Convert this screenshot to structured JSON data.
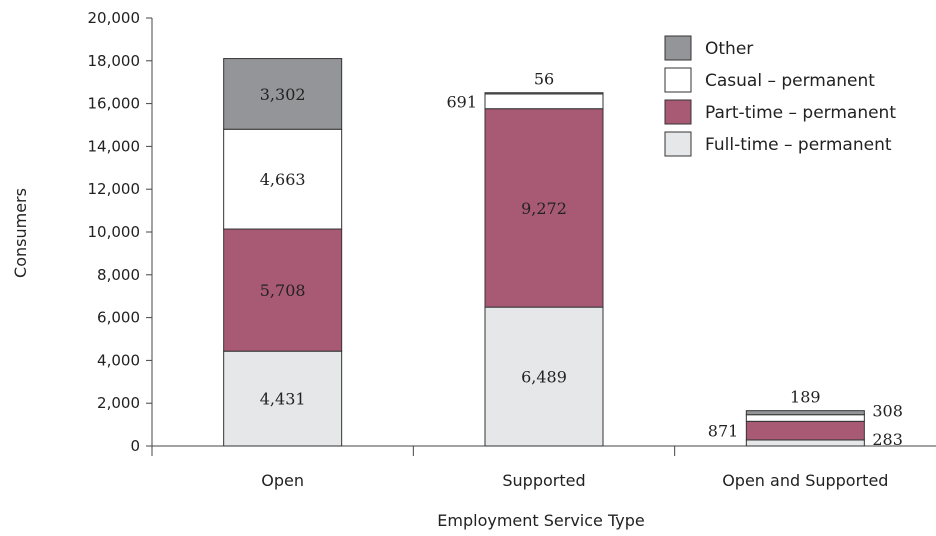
{
  "chart_data": {
    "type": "bar",
    "stacked": true,
    "xlabel": "Employment Service Type",
    "ylabel": "Consumers",
    "ylim": [
      0,
      20000
    ],
    "yticks": [
      0,
      2000,
      4000,
      6000,
      8000,
      10000,
      12000,
      14000,
      16000,
      18000,
      20000
    ],
    "ytick_labels": [
      "0",
      "2,000",
      "4,000",
      "6,000",
      "8,000",
      "10,000",
      "12,000",
      "14,000",
      "16,000",
      "18,000",
      "20,000"
    ],
    "grid": false,
    "legend_position": "top-right",
    "categories": [
      "Open",
      "Supported",
      "Open and Supported"
    ],
    "series": [
      {
        "name": "Full-time – permanent",
        "color": "#e6e7e9",
        "values": [
          4431,
          6489,
          283
        ],
        "labels": [
          "4,431",
          "6,489",
          "283"
        ]
      },
      {
        "name": "Part-time – permanent",
        "color": "#a85a74",
        "values": [
          5708,
          9272,
          871
        ],
        "labels": [
          "5,708",
          "9,272",
          "871"
        ]
      },
      {
        "name": "Casual – permanent",
        "color": "#ffffff",
        "values": [
          4663,
          691,
          308
        ],
        "labels": [
          "4,663",
          "691",
          "308"
        ]
      },
      {
        "name": "Other",
        "color": "#939598",
        "values": [
          3302,
          56,
          189
        ],
        "labels": [
          "3,302",
          "56",
          "189"
        ]
      }
    ],
    "legend_order": [
      "Other",
      "Casual – permanent",
      "Part-time – permanent",
      "Full-time – permanent"
    ]
  }
}
